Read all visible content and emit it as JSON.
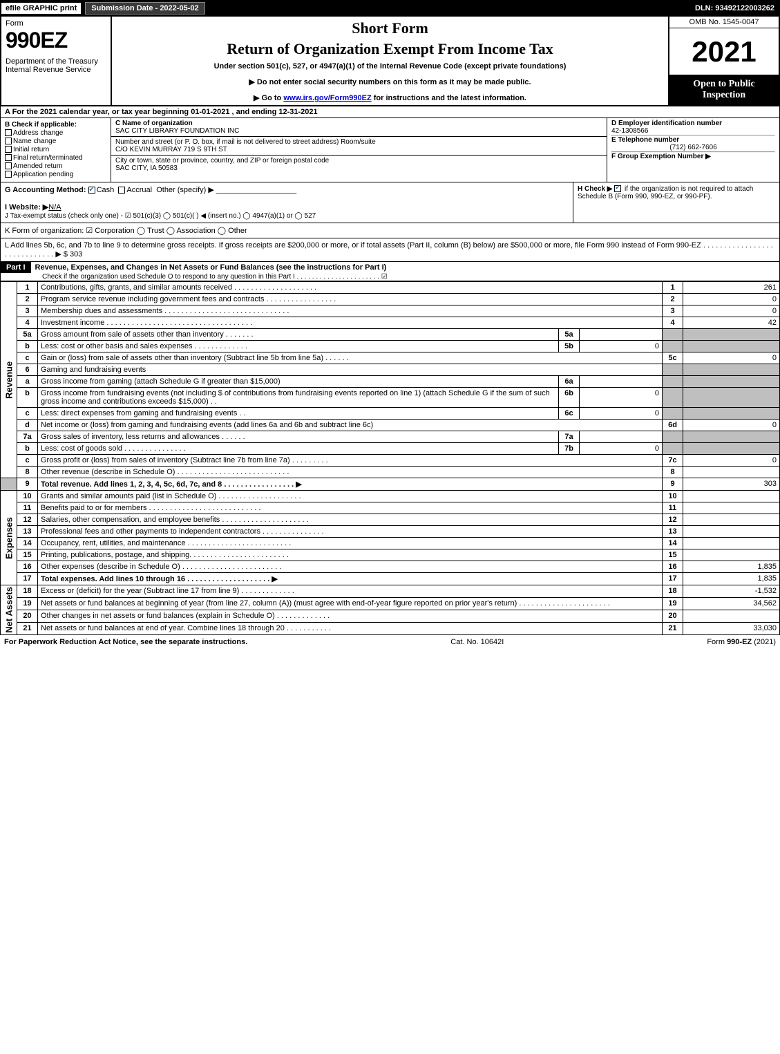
{
  "topbar": {
    "efile": "efile GRAPHIC print",
    "submission_label": "Submission Date - 2022-05-02",
    "dln": "DLN: 93492122003262"
  },
  "header": {
    "form_label": "Form",
    "form_number": "990EZ",
    "department": "Department of the Treasury\nInternal Revenue Service",
    "short_form": "Short Form",
    "title": "Return of Organization Exempt From Income Tax",
    "under_section": "Under section 501(c), 527, or 4947(a)(1) of the Internal Revenue Code (except private foundations)",
    "bullet1": "▶ Do not enter social security numbers on this form as it may be made public.",
    "bullet2_pre": "▶ Go to ",
    "bullet2_link": "www.irs.gov/Form990EZ",
    "bullet2_post": " for instructions and the latest information.",
    "omb": "OMB No. 1545-0047",
    "year": "2021",
    "open_to_public": "Open to Public Inspection"
  },
  "section_a": "A  For the 2021 calendar year, or tax year beginning 01-01-2021 , and ending 12-31-2021",
  "b_checks": {
    "label": "B  Check if applicable:",
    "items": [
      "Address change",
      "Name change",
      "Initial return",
      "Final return/terminated",
      "Amended return",
      "Application pending"
    ]
  },
  "c": {
    "name_label": "C Name of organization",
    "name": "SAC CITY LIBRARY FOUNDATION INC",
    "street_label": "Number and street (or P. O. box, if mail is not delivered to street address)    Room/suite",
    "street": "C/O KEVIN MURRAY 719 S 9TH ST",
    "city_label": "City or town, state or province, country, and ZIP or foreign postal code",
    "city": "SAC CITY, IA  50583"
  },
  "d": {
    "label": "D Employer identification number",
    "value": "42-1308566"
  },
  "e": {
    "label": "E Telephone number",
    "value": "(712) 662-7606"
  },
  "f": {
    "label": "F Group Exemption Number  ▶"
  },
  "g": {
    "label": "G Accounting Method:  ",
    "cash": "Cash",
    "accrual": "Accrual",
    "other": "Other (specify) ▶"
  },
  "h": {
    "text": "H  Check ▶ ",
    "rest": " if the organization is not required to attach Schedule B (Form 990, 990-EZ, or 990-PF)."
  },
  "i": {
    "label": "I Website: ▶",
    "value": "N/A"
  },
  "j": {
    "text": "J Tax-exempt status (check only one) - ☑ 501(c)(3)  ◯ 501(c)(  ) ◀ (insert no.)  ◯ 4947(a)(1) or  ◯ 527"
  },
  "k": {
    "text": "K Form of organization:  ☑ Corporation  ◯ Trust  ◯ Association  ◯ Other"
  },
  "l": {
    "text": "L Add lines 5b, 6c, and 7b to line 9 to determine gross receipts. If gross receipts are $200,000 or more, or if total assets (Part II, column (B) below) are $500,000 or more, file Form 990 instead of Form 990-EZ . . . . . . . . . . . . . . . . . . . . . . . . . . . . . ▶ $ 303"
  },
  "part1": {
    "label": "Part I",
    "title": "Revenue, Expenses, and Changes in Net Assets or Fund Balances (see the instructions for Part I)",
    "sub": "Check if the organization used Schedule O to respond to any question in this Part I . . . . . . . . . . . . . . . . . . . . . . ☑"
  },
  "sections": {
    "revenue": "Revenue",
    "expenses": "Expenses",
    "netassets": "Net Assets"
  },
  "lines": {
    "l1": {
      "no": "1",
      "desc": "Contributions, gifts, grants, and similar amounts received . . . . . . . . . . . . . . . . . . . .",
      "rno": "1",
      "val": "261"
    },
    "l2": {
      "no": "2",
      "desc": "Program service revenue including government fees and contracts . . . . . . . . . . . . . . . . .",
      "rno": "2",
      "val": "0"
    },
    "l3": {
      "no": "3",
      "desc": "Membership dues and assessments . . . . . . . . . . . . . . . . . . . . . . . . . . . . . .",
      "rno": "3",
      "val": "0"
    },
    "l4": {
      "no": "4",
      "desc": "Investment income . . . . . . . . . . . . . . . . . . . . . . . . . . . . . . . . . . .",
      "rno": "4",
      "val": "42"
    },
    "l5a": {
      "no": "5a",
      "desc": "Gross amount from sale of assets other than inventory . . . . . . .",
      "mini": "5a",
      "minival": ""
    },
    "l5b": {
      "no": "b",
      "desc": "Less: cost or other basis and sales expenses . . . . . . . . . . . . .",
      "mini": "5b",
      "minival": "0"
    },
    "l5c": {
      "no": "c",
      "desc": "Gain or (loss) from sale of assets other than inventory (Subtract line 5b from line 5a) . . . . . .",
      "rno": "5c",
      "val": "0"
    },
    "l6": {
      "no": "6",
      "desc": "Gaming and fundraising events"
    },
    "l6a": {
      "no": "a",
      "desc": "Gross income from gaming (attach Schedule G if greater than $15,000)",
      "mini": "6a",
      "minival": ""
    },
    "l6b": {
      "no": "b",
      "desc": "Gross income from fundraising events (not including $                    of contributions from fundraising events reported on line 1) (attach Schedule G if the sum of such gross income and contributions exceeds $15,000)   . .",
      "mini": "6b",
      "minival": "0"
    },
    "l6c": {
      "no": "c",
      "desc": "Less: direct expenses from gaming and fundraising events     . .",
      "mini": "6c",
      "minival": "0"
    },
    "l6d": {
      "no": "d",
      "desc": "Net income or (loss) from gaming and fundraising events (add lines 6a and 6b and subtract line 6c)",
      "rno": "6d",
      "val": "0"
    },
    "l7a": {
      "no": "7a",
      "desc": "Gross sales of inventory, less returns and allowances . . . . . .",
      "mini": "7a",
      "minival": ""
    },
    "l7b": {
      "no": "b",
      "desc": "Less: cost of goods sold        . . . . . . . . . . . . . . .",
      "mini": "7b",
      "minival": "0"
    },
    "l7c": {
      "no": "c",
      "desc": "Gross profit or (loss) from sales of inventory (Subtract line 7b from line 7a) . . . . . . . . .",
      "rno": "7c",
      "val": "0"
    },
    "l8": {
      "no": "8",
      "desc": "Other revenue (describe in Schedule O) . . . . . . . . . . . . . . . . . . . . . . . . . . .",
      "rno": "8",
      "val": ""
    },
    "l9": {
      "no": "9",
      "desc": "Total revenue. Add lines 1, 2, 3, 4, 5c, 6d, 7c, and 8  . . . . . . . . . . . . . . . . .  ▶",
      "rno": "9",
      "val": "303"
    },
    "l10": {
      "no": "10",
      "desc": "Grants and similar amounts paid (list in Schedule O) . . . . . . . . . . . . . . . . . . . .",
      "rno": "10",
      "val": ""
    },
    "l11": {
      "no": "11",
      "desc": "Benefits paid to or for members      . . . . . . . . . . . . . . . . . . . . . . . . . . .",
      "rno": "11",
      "val": ""
    },
    "l12": {
      "no": "12",
      "desc": "Salaries, other compensation, and employee benefits . . . . . . . . . . . . . . . . . . . . .",
      "rno": "12",
      "val": ""
    },
    "l13": {
      "no": "13",
      "desc": "Professional fees and other payments to independent contractors . . . . . . . . . . . . . . .",
      "rno": "13",
      "val": ""
    },
    "l14": {
      "no": "14",
      "desc": "Occupancy, rent, utilities, and maintenance . . . . . . . . . . . . . . . . . . . . . . . . .",
      "rno": "14",
      "val": ""
    },
    "l15": {
      "no": "15",
      "desc": "Printing, publications, postage, and shipping. . . . . . . . . . . . . . . . . . . . . . . .",
      "rno": "15",
      "val": ""
    },
    "l16": {
      "no": "16",
      "desc": "Other expenses (describe in Schedule O)     . . . . . . . . . . . . . . . . . . . . . . . .",
      "rno": "16",
      "val": "1,835"
    },
    "l17": {
      "no": "17",
      "desc": "Total expenses. Add lines 10 through 16     . . . . . . . . . . . . . . . . . . . .  ▶",
      "rno": "17",
      "val": "1,835"
    },
    "l18": {
      "no": "18",
      "desc": "Excess or (deficit) for the year (Subtract line 17 from line 9)        . . . . . . . . . . . . .",
      "rno": "18",
      "val": "-1,532"
    },
    "l19": {
      "no": "19",
      "desc": "Net assets or fund balances at beginning of year (from line 27, column (A)) (must agree with end-of-year figure reported on prior year's return) . . . . . . . . . . . . . . . . . . . . . .",
      "rno": "19",
      "val": "34,562"
    },
    "l20": {
      "no": "20",
      "desc": "Other changes in net assets or fund balances (explain in Schedule O) . . . . . . . . . . . . .",
      "rno": "20",
      "val": ""
    },
    "l21": {
      "no": "21",
      "desc": "Net assets or fund balances at end of year. Combine lines 18 through 20 . . . . . . . . . . .",
      "rno": "21",
      "val": "33,030"
    }
  },
  "footer": {
    "left": "For Paperwork Reduction Act Notice, see the separate instructions.",
    "mid": "Cat. No. 10642I",
    "right_pre": "Form ",
    "right_bold": "990-EZ",
    "right_post": " (2021)"
  },
  "colors": {
    "black": "#000000",
    "white": "#ffffff",
    "gray_cell": "#bfbfbf",
    "link": "#0000cc",
    "check": "#2a6496",
    "topbar_btn": "#3a3a3a"
  }
}
